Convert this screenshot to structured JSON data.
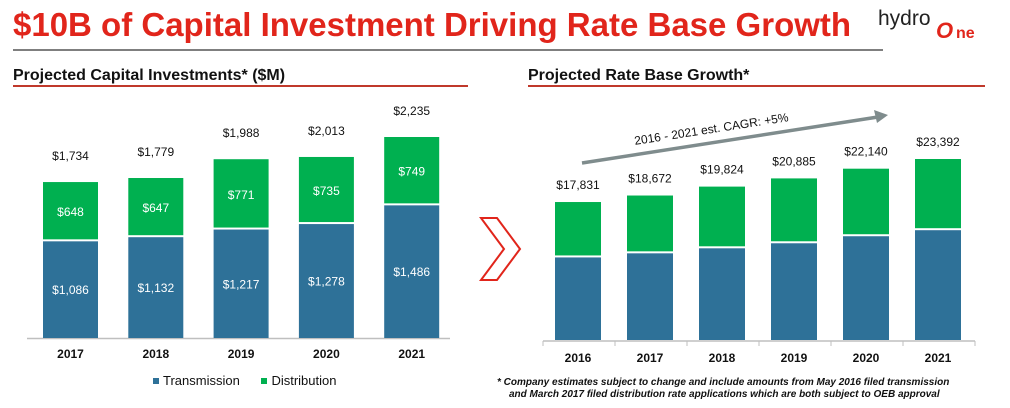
{
  "header": {
    "title": "$10B of Capital Investment Driving Rate Base Growth",
    "logo_text_left": "hydro",
    "logo_text_mark": "O",
    "logo_text_right": "ne"
  },
  "colors": {
    "title_red": "#e1251b",
    "transmission": "#2e7198",
    "distribution": "#00b050",
    "arrow_gray": "#7f8c8d",
    "chevron_red": "#e1251b"
  },
  "left_panel": {
    "subtitle": "Projected Capital Investments* ($M)",
    "legend": [
      {
        "label": "Transmission",
        "color": "#2e7198"
      },
      {
        "label": "Distribution",
        "color": "#00b050"
      }
    ]
  },
  "right_panel": {
    "subtitle": "Projected Rate Base Growth*",
    "cagr_annotation": "2016 - 2021 est. CAGR: +5%"
  },
  "footnote": {
    "line1": "*  Company estimates subject to change and include amounts from May 2016 filed transmission",
    "line2": "and March 2017 filed distribution rate applications which are both subject to OEB approval"
  },
  "chart_data": [
    {
      "type": "bar",
      "stacked": true,
      "title": "Projected Capital Investments* ($M)",
      "xlabel": "",
      "ylabel": "",
      "categories": [
        "2017",
        "2018",
        "2019",
        "2020",
        "2021"
      ],
      "series": [
        {
          "name": "Transmission",
          "values": [
            1086,
            1132,
            1217,
            1278,
            1486
          ],
          "labels": [
            "$1,086",
            "$1,132",
            "$1,217",
            "$1,278",
            "$1,486"
          ]
        },
        {
          "name": "Distribution",
          "values": [
            648,
            647,
            771,
            735,
            749
          ],
          "labels": [
            "$648",
            "$647",
            "$771",
            "$735",
            "$749"
          ]
        }
      ],
      "totals": [
        1734,
        1779,
        1988,
        2013,
        2235
      ],
      "total_labels": [
        "$1,734",
        "$1,779",
        "$1,988",
        "$2,013",
        "$2,235"
      ],
      "ylim": [
        0,
        2500
      ],
      "grid": false,
      "legend_position": "bottom"
    },
    {
      "type": "bar",
      "stacked": true,
      "title": "Projected Rate Base Growth*",
      "xlabel": "",
      "ylabel": "",
      "categories": [
        "2016",
        "2017",
        "2018",
        "2019",
        "2020",
        "2021"
      ],
      "series": [
        {
          "name": "Transmission",
          "values": [
            10800,
            11330,
            11980,
            12630,
            13540,
            14320
          ]
        },
        {
          "name": "Distribution",
          "values": [
            7031,
            7342,
            7844,
            8255,
            8600,
            9072
          ]
        }
      ],
      "totals": [
        17831,
        18672,
        19824,
        20885,
        22140,
        23392
      ],
      "total_labels": [
        "$17,831",
        "$18,672",
        "$19,824",
        "$20,885",
        "$22,140",
        "$23,392"
      ],
      "annotations": [
        "2016 - 2021 est. CAGR: +5%"
      ],
      "ylim": [
        0,
        24000
      ],
      "grid": false,
      "legend_position": "none"
    }
  ]
}
